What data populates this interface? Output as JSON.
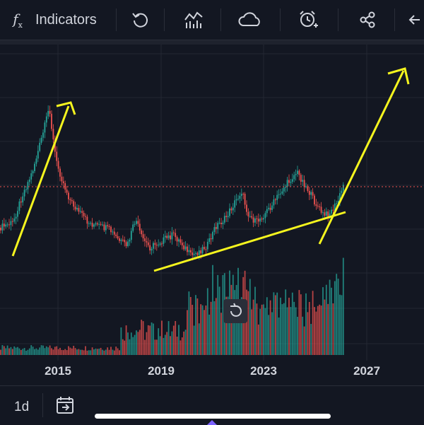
{
  "toolbar": {
    "fx_glyph": "f",
    "fx_sub": "x",
    "indicators_label": "Indicators",
    "icons": [
      "function-icon",
      "replay-icon",
      "compare-icon",
      "cloud-icon",
      "alarm-clock-icon",
      "share-icon",
      "arrow-left-icon"
    ]
  },
  "chart": {
    "x_axis_labels": [
      "2015",
      "2019",
      "2023",
      "2027"
    ],
    "colors": {
      "background": "#131722",
      "grid": "#232733",
      "up": "#26a69a",
      "down": "#ef5350",
      "trendline": "#f5f51e",
      "price_line": "#ef5350"
    },
    "reset_button_icon": "reset-icon"
  },
  "bottom": {
    "interval_label": "1d",
    "goto_icon": "calendar-goto-icon"
  }
}
